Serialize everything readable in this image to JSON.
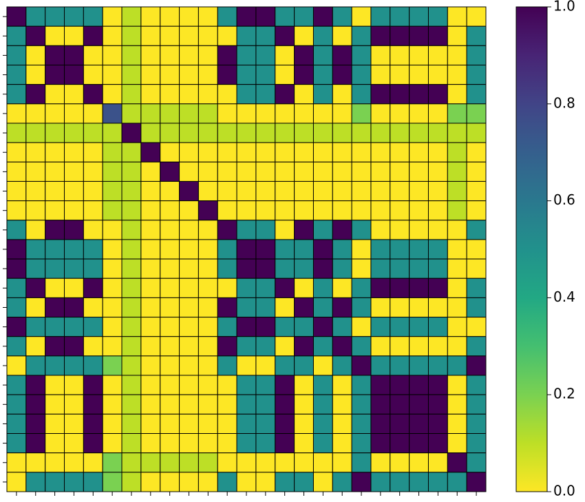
{
  "chart_data": {
    "type": "heatmap",
    "colormap": "viridis",
    "reversed": true,
    "z": [
      [
        1,
        0.5,
        0.5,
        0.5,
        0.5,
        0,
        0.1,
        0,
        0,
        0,
        0,
        0.5,
        1,
        1,
        0.5,
        0.5,
        1,
        0.5,
        0,
        0.5,
        0.5,
        0.5,
        0.5,
        0,
        0
      ],
      [
        0.5,
        1,
        0,
        0,
        1,
        0,
        0.1,
        0,
        0,
        0,
        0,
        0,
        0.5,
        0.5,
        1,
        0,
        0.5,
        0,
        0.5,
        1,
        1,
        1,
        1,
        0,
        0.5
      ],
      [
        0.5,
        0,
        1,
        1,
        0,
        0,
        0.1,
        0,
        0,
        0,
        0,
        1,
        0.5,
        0.5,
        0,
        1,
        0.5,
        1,
        0.5,
        0,
        0,
        0,
        0,
        0,
        0.5
      ],
      [
        0.5,
        0,
        1,
        1,
        0,
        0,
        0.1,
        0,
        0,
        0,
        0,
        1,
        0.5,
        0.5,
        0,
        1,
        0.5,
        1,
        0.5,
        0,
        0,
        0,
        0,
        0,
        0.5
      ],
      [
        0.5,
        1,
        0,
        0,
        1,
        0,
        0.1,
        0,
        0,
        0,
        0,
        0,
        0.5,
        0.5,
        1,
        0,
        0.5,
        0,
        0.5,
        1,
        1,
        1,
        1,
        0,
        0.5
      ],
      [
        0,
        0,
        0,
        0,
        0,
        0.75,
        0.1,
        0.1,
        0.1,
        0.1,
        0.1,
        0,
        0,
        0,
        0,
        0,
        0,
        0,
        0.2,
        0,
        0,
        0,
        0,
        0.2,
        0.2
      ],
      [
        0.1,
        0.1,
        0.1,
        0.1,
        0.1,
        0.1,
        1,
        0.1,
        0.1,
        0.1,
        0.1,
        0.1,
        0.1,
        0.1,
        0.1,
        0.1,
        0.1,
        0.1,
        0.1,
        0.1,
        0.1,
        0.1,
        0.1,
        0.1,
        0.1
      ],
      [
        0,
        0,
        0,
        0,
        0,
        0.1,
        0.1,
        1,
        0,
        0,
        0,
        0,
        0,
        0,
        0,
        0,
        0,
        0,
        0,
        0,
        0,
        0,
        0,
        0.1,
        0
      ],
      [
        0,
        0,
        0,
        0,
        0,
        0.1,
        0.1,
        0,
        1,
        0,
        0,
        0,
        0,
        0,
        0,
        0,
        0,
        0,
        0,
        0,
        0,
        0,
        0,
        0.1,
        0
      ],
      [
        0,
        0,
        0,
        0,
        0,
        0.1,
        0.1,
        0,
        0,
        1,
        0,
        0,
        0,
        0,
        0,
        0,
        0,
        0,
        0,
        0,
        0,
        0,
        0,
        0.1,
        0
      ],
      [
        0,
        0,
        0,
        0,
        0,
        0.1,
        0.1,
        0,
        0,
        0,
        1,
        0,
        0,
        0,
        0,
        0,
        0,
        0,
        0,
        0,
        0,
        0,
        0,
        0.1,
        0
      ],
      [
        0.5,
        0,
        1,
        1,
        0,
        0,
        0.1,
        0,
        0,
        0,
        0,
        1,
        0.5,
        0.5,
        0,
        1,
        0.5,
        1,
        0.5,
        0,
        0,
        0,
        0,
        0,
        0.5
      ],
      [
        1,
        0.5,
        0.5,
        0.5,
        0.5,
        0,
        0.1,
        0,
        0,
        0,
        0,
        0.5,
        1,
        1,
        0.5,
        0.5,
        1,
        0.5,
        0,
        0.5,
        0.5,
        0.5,
        0.5,
        0,
        0
      ],
      [
        1,
        0.5,
        0.5,
        0.5,
        0.5,
        0,
        0.1,
        0,
        0,
        0,
        0,
        0.5,
        1,
        1,
        0.5,
        0.5,
        1,
        0.5,
        0,
        0.5,
        0.5,
        0.5,
        0.5,
        0,
        0
      ],
      [
        0.5,
        1,
        0,
        0,
        1,
        0,
        0.1,
        0,
        0,
        0,
        0,
        0,
        0.5,
        0.5,
        1,
        0,
        0.5,
        0,
        0.5,
        1,
        1,
        1,
        1,
        0,
        0.5
      ],
      [
        0.5,
        0,
        1,
        1,
        0,
        0,
        0.1,
        0,
        0,
        0,
        0,
        1,
        0.5,
        0.5,
        0,
        1,
        0.5,
        1,
        0.5,
        0,
        0,
        0,
        0,
        0,
        0.5
      ],
      [
        1,
        0.5,
        0.5,
        0.5,
        0.5,
        0,
        0.1,
        0,
        0,
        0,
        0,
        0.5,
        1,
        1,
        0.5,
        0.5,
        1,
        0.5,
        0,
        0.5,
        0.5,
        0.5,
        0.5,
        0,
        0
      ],
      [
        0.5,
        0,
        1,
        1,
        0,
        0,
        0.1,
        0,
        0,
        0,
        0,
        1,
        0.5,
        0.5,
        0,
        1,
        0.5,
        1,
        0.5,
        0,
        0,
        0,
        0,
        0,
        0.5
      ],
      [
        0,
        0.5,
        0.5,
        0.5,
        0.5,
        0.2,
        0.1,
        0,
        0,
        0,
        0,
        0.5,
        0,
        0,
        0.5,
        0.5,
        0,
        0.5,
        1,
        0.5,
        0.5,
        0.5,
        0.5,
        0.5,
        1
      ],
      [
        0.5,
        1,
        0,
        0,
        1,
        0,
        0.1,
        0,
        0,
        0,
        0,
        0,
        0.5,
        0.5,
        1,
        0,
        0.5,
        0,
        0.5,
        1,
        1,
        1,
        1,
        0,
        0.5
      ],
      [
        0.5,
        1,
        0,
        0,
        1,
        0,
        0.1,
        0,
        0,
        0,
        0,
        0,
        0.5,
        0.5,
        1,
        0,
        0.5,
        0,
        0.5,
        1,
        1,
        1,
        1,
        0,
        0.5
      ],
      [
        0.5,
        1,
        0,
        0,
        1,
        0,
        0.1,
        0,
        0,
        0,
        0,
        0,
        0.5,
        0.5,
        1,
        0,
        0.5,
        0,
        0.5,
        1,
        1,
        1,
        1,
        0,
        0.5
      ],
      [
        0.5,
        1,
        0,
        0,
        1,
        0,
        0.1,
        0,
        0,
        0,
        0,
        0,
        0.5,
        0.5,
        1,
        0,
        0.5,
        0,
        0.5,
        1,
        1,
        1,
        1,
        0,
        0.5
      ],
      [
        0,
        0,
        0,
        0,
        0,
        0.2,
        0.1,
        0.1,
        0.1,
        0.1,
        0.1,
        0,
        0,
        0,
        0,
        0,
        0,
        0,
        0.5,
        0,
        0,
        0,
        0,
        1,
        0.5
      ],
      [
        0,
        0.5,
        0.5,
        0.5,
        0.5,
        0.2,
        0.1,
        0,
        0,
        0,
        0,
        0.5,
        0,
        0,
        0.5,
        0.5,
        0,
        0.5,
        1,
        0.5,
        0.5,
        0.5,
        0.5,
        0.5,
        1
      ]
    ],
    "clim": [
      0,
      1
    ],
    "cticks": [
      {
        "value": 0,
        "label": "0.0"
      },
      0.2,
      0.4,
      0.6,
      0.8,
      {
        "value": 1,
        "label": "1.0"
      }
    ]
  }
}
